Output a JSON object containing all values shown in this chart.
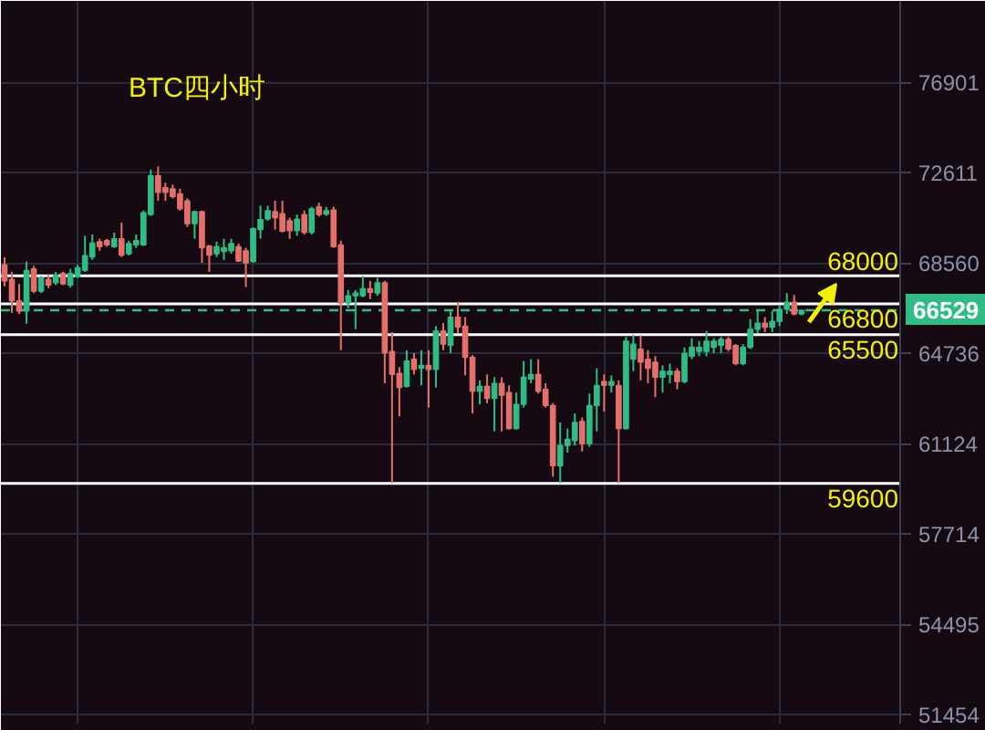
{
  "chart_data": {
    "type": "candlestick",
    "title": "BTC四小时",
    "categories": [
      null,
      null,
      null,
      null,
      null,
      null,
      null,
      null,
      null,
      null,
      null,
      null,
      null,
      null,
      null,
      null,
      null,
      null,
      null,
      null,
      null,
      null,
      null,
      null,
      null,
      null,
      null,
      null,
      null,
      null,
      null,
      null,
      null,
      null,
      null,
      null,
      null,
      null,
      null,
      null,
      null,
      null,
      null,
      null,
      null,
      null,
      null,
      null,
      null,
      null,
      null,
      null,
      null,
      null,
      null,
      null,
      null,
      null,
      null,
      null,
      null,
      null,
      null,
      null,
      null,
      null,
      null,
      null,
      null,
      null,
      null,
      null,
      null,
      null,
      null,
      null,
      null,
      null,
      null,
      null,
      null,
      null,
      null,
      null,
      null,
      null,
      null,
      null,
      null,
      null,
      null,
      null,
      null,
      null,
      null,
      null,
      null,
      null,
      null,
      null,
      null,
      null,
      null,
      null,
      null,
      null,
      null,
      null,
      null,
      null,
      null,
      null,
      null,
      null,
      null,
      null,
      null,
      null,
      null,
      null,
      null,
      null,
      null
    ],
    "ohlc": [
      [
        68480,
        68800,
        67550,
        67780
      ],
      [
        67850,
        68170,
        66420,
        66930
      ],
      [
        66930,
        67650,
        66370,
        66490
      ],
      [
        66490,
        68620,
        65960,
        68230
      ],
      [
        68300,
        68430,
        67260,
        67340
      ],
      [
        67340,
        67990,
        67260,
        67910
      ],
      [
        67850,
        68040,
        67470,
        67600
      ],
      [
        67700,
        68170,
        67600,
        68040
      ],
      [
        68110,
        68170,
        67600,
        67650
      ],
      [
        67600,
        68300,
        67490,
        68110
      ],
      [
        67960,
        68480,
        67910,
        68350
      ],
      [
        68230,
        69750,
        68170,
        68880
      ],
      [
        68820,
        69810,
        68690,
        69430
      ],
      [
        69490,
        69620,
        69090,
        69270
      ],
      [
        69540,
        69620,
        69270,
        69350
      ],
      [
        69270,
        69890,
        69220,
        69620
      ],
      [
        69620,
        70340,
        68820,
        68900
      ],
      [
        68960,
        69540,
        68880,
        69410
      ],
      [
        69350,
        69810,
        69220,
        69540
      ],
      [
        69350,
        70880,
        69300,
        70780
      ],
      [
        70700,
        72750,
        70640,
        72470
      ],
      [
        72470,
        72890,
        71320,
        71700
      ],
      [
        71920,
        72140,
        71320,
        71700
      ],
      [
        71870,
        72060,
        71430,
        71510
      ],
      [
        71640,
        71870,
        70880,
        70960
      ],
      [
        71320,
        71430,
        70150,
        70290
      ],
      [
        70290,
        70880,
        69620,
        70830
      ],
      [
        70830,
        70880,
        68560,
        69220
      ],
      [
        69300,
        69350,
        68170,
        68900
      ],
      [
        68960,
        69490,
        68820,
        69270
      ],
      [
        69060,
        69620,
        68690,
        69220
      ],
      [
        69090,
        69620,
        68960,
        69410
      ],
      [
        69270,
        69410,
        68600,
        68640
      ],
      [
        69090,
        69220,
        67520,
        68560
      ],
      [
        68620,
        70130,
        68560,
        70070
      ],
      [
        70030,
        71100,
        69620,
        70480
      ],
      [
        70500,
        71100,
        70420,
        70880
      ],
      [
        70830,
        71320,
        70030,
        70560
      ],
      [
        70740,
        71320,
        69900,
        69950
      ],
      [
        70420,
        70560,
        69620,
        69980
      ],
      [
        69980,
        70700,
        69750,
        70500
      ],
      [
        70700,
        70880,
        69810,
        69900
      ],
      [
        69900,
        71050,
        69810,
        70960
      ],
      [
        71050,
        71230,
        70610,
        70700
      ],
      [
        70720,
        71050,
        70640,
        70880
      ],
      [
        70910,
        71050,
        69220,
        69270
      ],
      [
        69350,
        69540,
        64860,
        66830
      ],
      [
        66830,
        67390,
        66620,
        67140
      ],
      [
        67140,
        67390,
        65730,
        67260
      ],
      [
        67140,
        68000,
        67080,
        67450
      ],
      [
        67450,
        67780,
        67000,
        67290
      ],
      [
        67260,
        67910,
        67140,
        67700
      ],
      [
        67700,
        67780,
        63510,
        64740
      ],
      [
        64810,
        65610,
        59600,
        63870
      ],
      [
        63920,
        64170,
        62190,
        63340
      ],
      [
        63390,
        64860,
        63340,
        64420
      ],
      [
        64490,
        64740,
        63870,
        64070
      ],
      [
        64120,
        64860,
        63430,
        64240
      ],
      [
        64240,
        64860,
        62540,
        64070
      ],
      [
        64070,
        65860,
        63340,
        65660
      ],
      [
        65660,
        65990,
        64860,
        65110
      ],
      [
        65060,
        66490,
        64740,
        66240
      ],
      [
        66240,
        66870,
        65560,
        65810
      ],
      [
        65860,
        66240,
        63830,
        64570
      ],
      [
        64570,
        64660,
        62310,
        63190
      ],
      [
        63190,
        63630,
        62670,
        63390
      ],
      [
        63390,
        63870,
        62710,
        62900
      ],
      [
        62900,
        63760,
        61600,
        63510
      ],
      [
        63510,
        63760,
        61600,
        63030
      ],
      [
        63140,
        63430,
        61670,
        61710
      ],
      [
        61710,
        63140,
        61670,
        62670
      ],
      [
        62670,
        64420,
        62540,
        63760
      ],
      [
        63680,
        64490,
        63510,
        63870
      ],
      [
        63870,
        64490,
        63100,
        63190
      ],
      [
        63270,
        63510,
        62540,
        62620
      ],
      [
        62620,
        62710,
        59850,
        60270
      ],
      [
        60270,
        61950,
        59600,
        61050
      ],
      [
        61050,
        61710,
        60770,
        61290
      ],
      [
        61240,
        62310,
        61050,
        61950
      ],
      [
        61990,
        62140,
        60820,
        61120
      ],
      [
        61120,
        63100,
        61000,
        62620
      ],
      [
        62620,
        64120,
        61600,
        63430
      ],
      [
        63580,
        63870,
        62380,
        63430
      ],
      [
        63430,
        63830,
        63140,
        63580
      ],
      [
        63430,
        63630,
        59600,
        61710
      ],
      [
        61710,
        65410,
        61670,
        65240
      ],
      [
        64490,
        65500,
        64000,
        65110
      ],
      [
        64910,
        65480,
        63630,
        64370
      ],
      [
        64490,
        64860,
        63510,
        64120
      ],
      [
        64370,
        64610,
        62960,
        63760
      ],
      [
        63760,
        64240,
        63140,
        64000
      ],
      [
        63870,
        64310,
        63510,
        64000
      ],
      [
        64000,
        64120,
        63270,
        63580
      ],
      [
        63580,
        64980,
        63510,
        64740
      ],
      [
        64610,
        65360,
        64490,
        64980
      ],
      [
        64810,
        65240,
        64610,
        64980
      ],
      [
        64810,
        65660,
        64610,
        65240
      ],
      [
        64980,
        65360,
        64740,
        65240
      ],
      [
        65060,
        65410,
        64740,
        65310
      ],
      [
        65310,
        65410,
        64810,
        64910
      ],
      [
        65060,
        65110,
        64240,
        64310
      ],
      [
        64310,
        65110,
        64240,
        64980
      ],
      [
        64980,
        66160,
        64910,
        65730
      ],
      [
        65730,
        66490,
        65560,
        65990
      ],
      [
        65990,
        66240,
        65610,
        65810
      ],
      [
        65810,
        66490,
        65610,
        66060
      ],
      [
        66060,
        66750,
        65860,
        66570
      ],
      [
        66570,
        67260,
        66370,
        66870
      ],
      [
        66870,
        67180,
        66320,
        66370
      ],
      [
        66370,
        66570,
        66320,
        66529
      ],
      null,
      null,
      null,
      null,
      null,
      null,
      null,
      null,
      null,
      null,
      null,
      null,
      null
    ],
    "colors": [
      "#e5706b",
      "#e5706b",
      "#e5706b",
      "#2ebd85",
      "#e5706b",
      "#2ebd85",
      "#e5706b",
      "#2ebd85",
      "#e5706b",
      "#2ebd85",
      "#2ebd85",
      "#2ebd85",
      "#2ebd85",
      "#e5706b",
      "#e5706b",
      "#2ebd85",
      "#e5706b",
      "#2ebd85",
      "#2ebd85",
      "#2ebd85",
      "#2ebd85",
      "#e5706b",
      "#e5706b",
      "#e5706b",
      "#e5706b",
      "#e5706b",
      "#2ebd85",
      "#e5706b",
      "#e5706b",
      "#2ebd85",
      "#2ebd85",
      "#2ebd85",
      "#e5706b",
      "#e5706b",
      "#2ebd85",
      "#2ebd85",
      "#2ebd85",
      "#e5706b",
      "#e5706b",
      "#e5706b",
      "#2ebd85",
      "#e5706b",
      "#2ebd85",
      "#e5706b",
      "#2ebd85",
      "#e5706b",
      "#e5706b",
      "#2ebd85",
      "#2ebd85",
      "#2ebd85",
      "#e5706b",
      "#2ebd85",
      "#e5706b",
      "#e5706b",
      "#e5706b",
      "#2ebd85",
      "#e5706b",
      "#2ebd85",
      "#e5706b",
      "#2ebd85",
      "#e5706b",
      "#2ebd85",
      "#e5706b",
      "#e5706b",
      "#e5706b",
      "#2ebd85",
      "#e5706b",
      "#2ebd85",
      "#e5706b",
      "#e5706b",
      "#2ebd85",
      "#2ebd85",
      "#2ebd85",
      "#e5706b",
      "#e5706b",
      "#e5706b",
      "#2ebd85",
      "#2ebd85",
      "#2ebd85",
      "#e5706b",
      "#2ebd85",
      "#2ebd85",
      "#e5706b",
      "#2ebd85",
      "#e5706b",
      "#2ebd85",
      "#2ebd85",
      "#e5706b",
      "#e5706b",
      "#e5706b",
      "#2ebd85",
      "#2ebd85",
      "#e5706b",
      "#2ebd85",
      "#2ebd85",
      "#2ebd85",
      "#2ebd85",
      "#2ebd85",
      "#2ebd85",
      "#e5706b",
      "#e5706b",
      "#2ebd85",
      "#2ebd85",
      "#2ebd85",
      "#e5706b",
      "#2ebd85",
      "#2ebd85",
      "#2ebd85",
      "#e5706b",
      "#2ebd85",
      null,
      null,
      null,
      null,
      null,
      null,
      null,
      null,
      null,
      null,
      null,
      null,
      null
    ],
    "ylim": [
      51160,
      80980
    ],
    "yticks": [
      76901,
      72611,
      68560,
      64736,
      61124,
      57714,
      54495,
      51454
    ],
    "log": "y",
    "grid": true,
    "tick_labels": "y",
    "ref_lines": [
      {
        "axis": "y",
        "value": 68000,
        "label": "68000",
        "color": "#ffffff",
        "line_style": "solid"
      },
      {
        "axis": "y",
        "value": 66800,
        "label": "66800",
        "color": "#ffffff",
        "line_style": "solid"
      },
      {
        "axis": "y",
        "value": 65500,
        "label": "65500",
        "color": "#ffffff",
        "line_style": "solid"
      },
      {
        "axis": "y",
        "value": 59600,
        "label": "59600",
        "color": "#ffffff",
        "line_style": "solid"
      },
      {
        "axis": "y",
        "value": 66529,
        "label": "66529",
        "color": "#2ebd85",
        "line_style": "dashed"
      }
    ]
  }
}
